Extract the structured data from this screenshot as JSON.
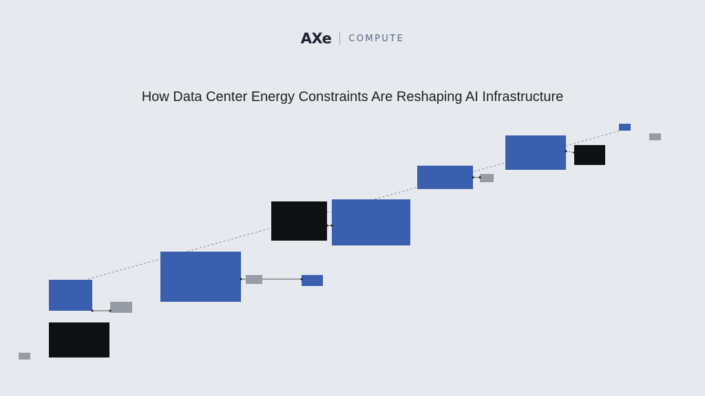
{
  "brand": {
    "mark": "AXe",
    "name": "COMPUTE"
  },
  "title": "How Data Center Energy Constraints Are Reshaping AI Infrastructure",
  "colors": {
    "background": "#e6e9ed",
    "blue": "#3a5fae",
    "black": "#0e1014",
    "gray": "#979ba3",
    "line": "#8a8f98"
  }
}
